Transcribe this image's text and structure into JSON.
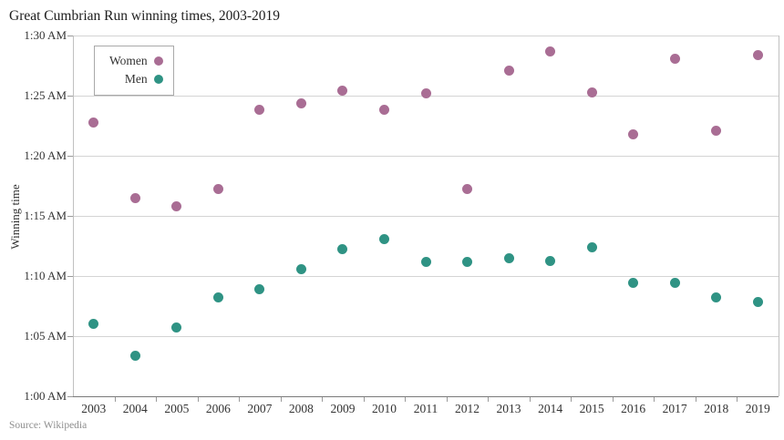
{
  "chart_data": {
    "type": "scatter",
    "title": "Great Cumbrian Run winning times, 2003-2019",
    "source": "Source: Wikipedia",
    "ylabel": "Winning time",
    "legend_position": "top-left",
    "grid": "horizontal",
    "categories": [
      "2003",
      "2004",
      "2005",
      "2006",
      "2007",
      "2008",
      "2009",
      "2010",
      "2011",
      "2012",
      "2013",
      "2014",
      "2015",
      "2016",
      "2017",
      "2018",
      "2019"
    ],
    "y_axis": {
      "unit": "minutes after 1:00 AM",
      "min": 0,
      "max": 30,
      "tick_step": 5,
      "tick_labels_bottom_to_top": [
        "1:00 AM",
        "1:05 AM",
        "1:10 AM",
        "1:15 AM",
        "1:20 AM",
        "1:25 AM",
        "1:30 AM"
      ]
    },
    "series": [
      {
        "name": "Women",
        "color": "#a96d94",
        "values": [
          22.75,
          16.5,
          15.8,
          17.2,
          23.8,
          24.35,
          25.45,
          23.8,
          25.2,
          17.2,
          27.1,
          28.7,
          25.3,
          21.8,
          28.1,
          22.1,
          28.4
        ]
      },
      {
        "name": "Men",
        "color": "#2f9384",
        "values": [
          6.0,
          3.4,
          5.75,
          8.2,
          8.9,
          10.6,
          12.25,
          13.1,
          11.2,
          11.2,
          11.5,
          11.25,
          12.35,
          9.4,
          9.4,
          8.2,
          7.85
        ]
      }
    ]
  }
}
